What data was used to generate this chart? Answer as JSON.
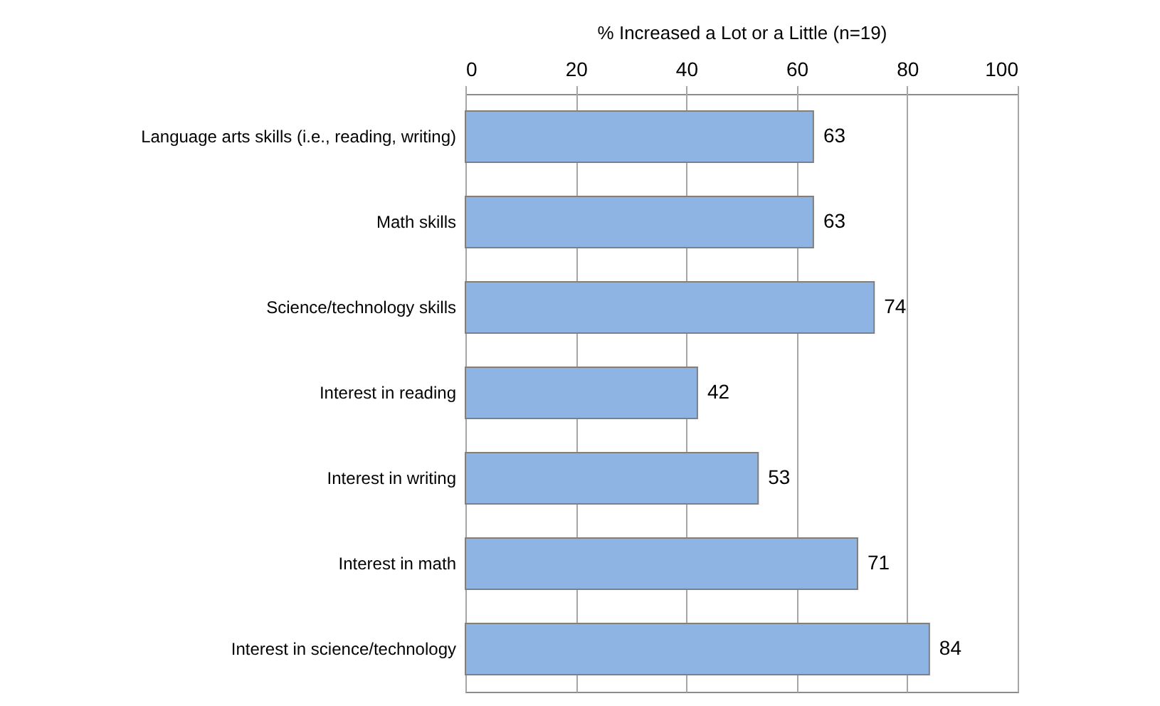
{
  "chart_data": {
    "type": "bar",
    "orientation": "horizontal",
    "xlabel": "% Increased a Lot or a Little (n=19)",
    "categories": [
      "Language arts skills (i.e., reading, writing)",
      "Math skills",
      "Science/technology skills",
      "Interest in reading",
      "Interest in writing",
      "Interest in math",
      "Interest in science/technology"
    ],
    "values": [
      63,
      63,
      74,
      42,
      53,
      71,
      84
    ],
    "color": "#8eb4e3",
    "xlim": [
      0,
      100
    ],
    "xticks": [
      0,
      20,
      40,
      60,
      80,
      100
    ],
    "grid": "x",
    "data_labels": true
  }
}
